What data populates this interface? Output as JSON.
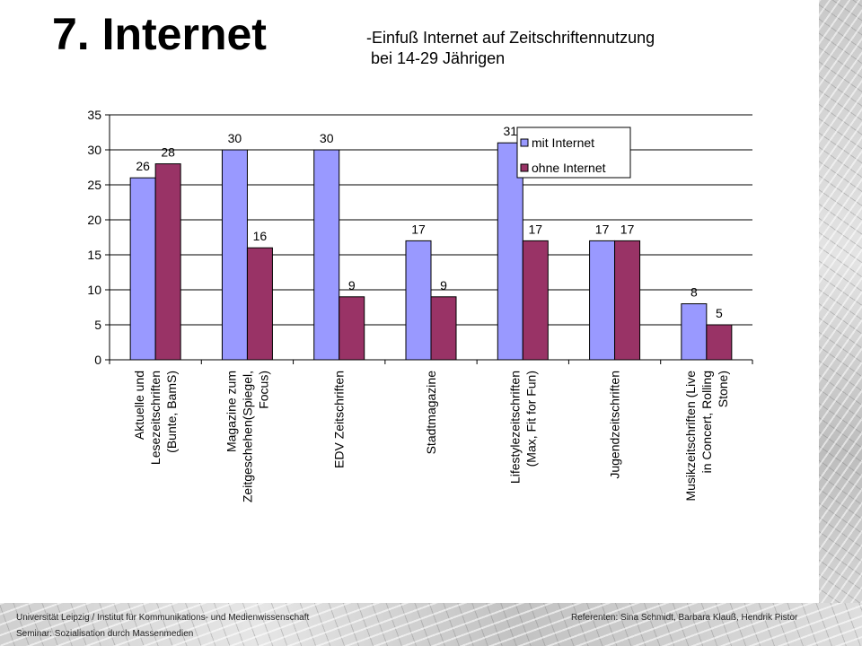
{
  "slide": {
    "title": "7. Internet",
    "subtitle_line1": "-Einfuß Internet auf Zeitschriftennutzung",
    "subtitle_line2": " bei 14-29 Jährigen"
  },
  "footer": {
    "institution": "Universität Leipzig / Institut für Kommunikations- und Medienwissenschaft",
    "seminar": "Seminar: Sozialisation durch Massenmedien",
    "speakers": "Referenten: Sina Schmidt, Barbara Klauß, Hendrik Pistor"
  },
  "chart_data": {
    "type": "bar",
    "title": "",
    "xlabel": "",
    "ylabel": "",
    "ylim": [
      0,
      35
    ],
    "yticks": [
      0,
      5,
      10,
      15,
      20,
      25,
      30,
      35
    ],
    "grid": true,
    "legend_position": "top-right",
    "categories": [
      [
        "Aktuelle und",
        "Lesezeitschriften",
        "(Bunte, BamS)"
      ],
      [
        "Magazine zum",
        "Zeitgeschehen(Spiegel,",
        "Focus)"
      ],
      [
        "EDV Zeitschriften"
      ],
      [
        "Stadtmagazine"
      ],
      [
        "Lifestylezeitschriften",
        "(Max, Fit for Fun)"
      ],
      [
        "Jugendzeitschriften"
      ],
      [
        "Musikzeitschriften (Live",
        "in Concert, Rolling",
        "Stone)"
      ]
    ],
    "series": [
      {
        "name": "mit Internet",
        "color": "#9999ff",
        "values": [
          26,
          30,
          30,
          17,
          31,
          17,
          8
        ]
      },
      {
        "name": "ohne Internet",
        "color": "#993366",
        "values": [
          28,
          16,
          9,
          9,
          17,
          17,
          5
        ]
      }
    ]
  }
}
